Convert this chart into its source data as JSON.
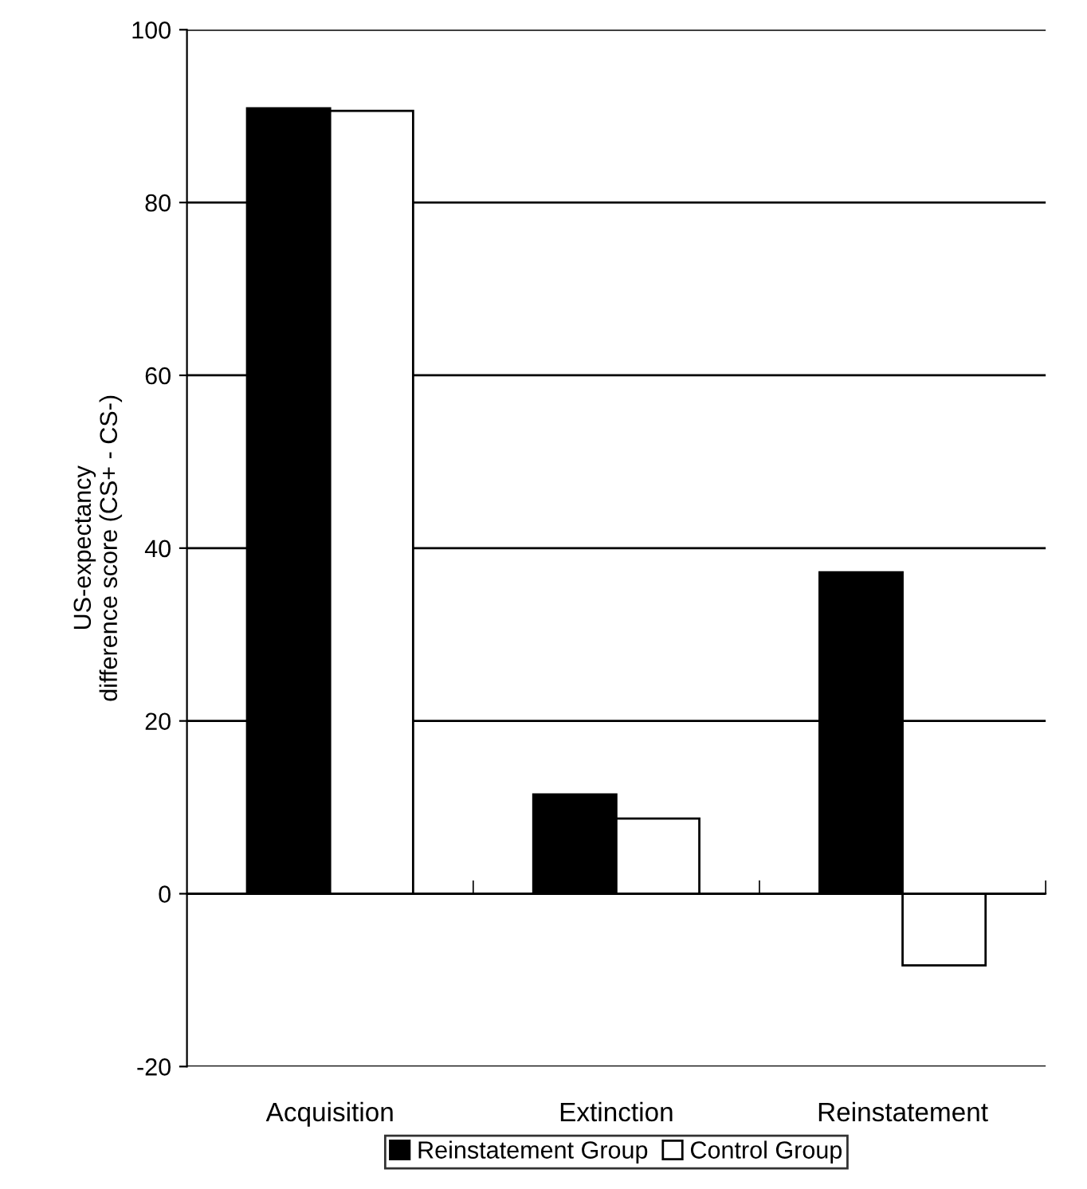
{
  "chart_data": {
    "type": "bar",
    "ylabel": "US-expectancy\ndifference score (CS+ - CS-)",
    "categories": [
      "Acquisition",
      "Extinction",
      "Reinstatement"
    ],
    "series": [
      {
        "name": "Reinstatement Group",
        "color": "#000000",
        "values": [
          90.9,
          11.5,
          37.2
        ]
      },
      {
        "name": "Control Group",
        "color": "#ffffff",
        "values": [
          90.6,
          8.7,
          -8.3
        ]
      }
    ],
    "ylim": [
      -20,
      100
    ],
    "yticks": [
      -20,
      0,
      20,
      40,
      60,
      80,
      100
    ],
    "grid": "y",
    "legend": "bottom"
  }
}
